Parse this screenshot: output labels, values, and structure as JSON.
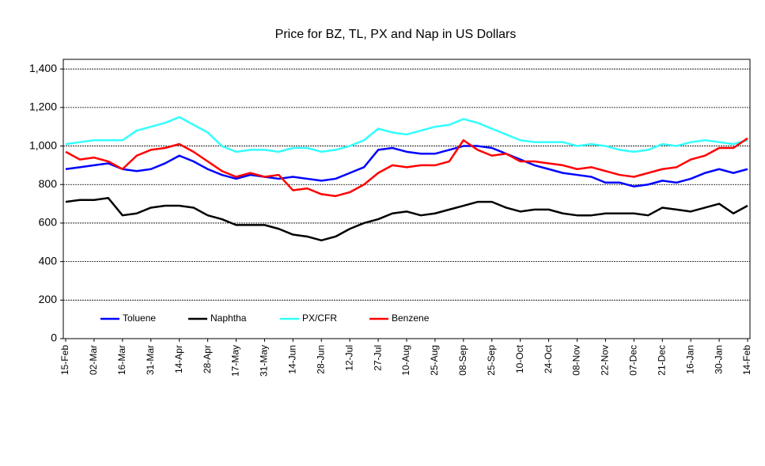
{
  "chart_data": {
    "type": "line",
    "title": "Price for BZ, TL, PX and Nap in US Dollars",
    "categories": [
      "15-Feb",
      null,
      "02-Mar",
      null,
      "16-Mar",
      null,
      "31-Mar",
      null,
      "14-Apr",
      null,
      "28-Apr",
      null,
      "17-May",
      null,
      "31-May",
      null,
      "14-Jun",
      null,
      "28-Jun",
      null,
      "12-Jul",
      null,
      "27-Jul",
      null,
      "10-Aug",
      null,
      "25-Aug",
      null,
      "08-Sep",
      null,
      "25-Sep",
      null,
      "10-Oct",
      null,
      "24-Oct",
      null,
      "08-Nov",
      null,
      "22-Nov",
      null,
      "07-Dec",
      null,
      "21-Dec",
      null,
      "16-Jan",
      null,
      "30-Jan",
      null,
      "14-Feb"
    ],
    "series": [
      {
        "name": "Toluene",
        "color": "#0000ff",
        "values": [
          880,
          890,
          900,
          910,
          880,
          870,
          880,
          910,
          950,
          920,
          880,
          850,
          830,
          850,
          840,
          830,
          840,
          830,
          820,
          830,
          860,
          890,
          980,
          990,
          970,
          960,
          960,
          980,
          1000,
          1000,
          990,
          960,
          930,
          900,
          880,
          860,
          850,
          840,
          810,
          810,
          790,
          800,
          820,
          810,
          830,
          860,
          880,
          860,
          880
        ]
      },
      {
        "name": "Naphtha",
        "color": "#000000",
        "values": [
          710,
          720,
          720,
          730,
          640,
          650,
          680,
          690,
          690,
          680,
          640,
          620,
          590,
          590,
          590,
          570,
          540,
          530,
          510,
          530,
          570,
          600,
          620,
          650,
          660,
          640,
          650,
          670,
          690,
          710,
          710,
          680,
          660,
          670,
          670,
          650,
          640,
          640,
          650,
          650,
          650,
          640,
          680,
          670,
          660,
          680,
          700,
          650,
          690
        ]
      },
      {
        "name": "PX/CFR",
        "color": "#33ffff",
        "values": [
          1010,
          1020,
          1030,
          1030,
          1030,
          1080,
          1100,
          1120,
          1150,
          1110,
          1070,
          1000,
          970,
          980,
          980,
          970,
          990,
          990,
          970,
          980,
          1000,
          1030,
          1090,
          1070,
          1060,
          1080,
          1100,
          1110,
          1140,
          1120,
          1090,
          1060,
          1030,
          1020,
          1020,
          1020,
          1000,
          1010,
          1000,
          980,
          970,
          980,
          1010,
          1000,
          1020,
          1030,
          1020,
          1010,
          1030
        ]
      },
      {
        "name": "Benzene",
        "color": "#ff0000",
        "values": [
          970,
          930,
          940,
          920,
          880,
          950,
          980,
          990,
          1010,
          970,
          920,
          870,
          840,
          860,
          840,
          850,
          770,
          780,
          750,
          740,
          760,
          800,
          860,
          900,
          890,
          900,
          900,
          920,
          1030,
          980,
          950,
          960,
          920,
          920,
          910,
          900,
          880,
          890,
          870,
          850,
          840,
          860,
          880,
          890,
          930,
          950,
          990,
          990,
          1040
        ]
      }
    ],
    "ylim": [
      0,
      1450
    ],
    "yticks": [
      0,
      200,
      400,
      600,
      800,
      {
        "value": 1000,
        "label": "1,000"
      },
      {
        "value": 1200,
        "label": "1,200"
      },
      {
        "value": 1400,
        "label": "1,400"
      }
    ],
    "grid": true
  }
}
